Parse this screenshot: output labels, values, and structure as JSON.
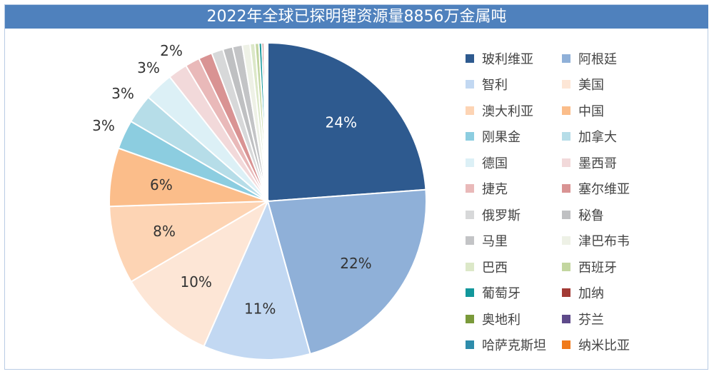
{
  "chart_data": {
    "type": "pie",
    "title": "2022年全球已探明锂资源量8856万金属吨",
    "start": "top",
    "direction": "clockwise",
    "legend_position": "right",
    "title_bar_color": "#4f81bd",
    "slices": [
      {
        "name": "玻利维亚",
        "value": 24,
        "label": "24%",
        "color": "#2e5a8f"
      },
      {
        "name": "阿根廷",
        "value": 22,
        "label": "22%",
        "color": "#8fb0d8"
      },
      {
        "name": "智利",
        "value": 11,
        "label": "11%",
        "color": "#c2d8f2"
      },
      {
        "name": "美国",
        "value": 10,
        "label": "10%",
        "color": "#fde6d6"
      },
      {
        "name": "澳大利亚",
        "value": 8,
        "label": "8%",
        "color": "#fdd4b4"
      },
      {
        "name": "中国",
        "value": 6,
        "label": "6%",
        "color": "#fbbd8a"
      },
      {
        "name": "刚果金",
        "value": 3,
        "label": "3%",
        "color": "#8ccde0"
      },
      {
        "name": "加拿大",
        "value": 3,
        "label": "3%",
        "color": "#b6dde8"
      },
      {
        "name": "德国",
        "value": 3,
        "label": "3%",
        "color": "#dcf0f6"
      },
      {
        "name": "墨西哥",
        "value": 2,
        "label": "2%",
        "color": "#f2d9da"
      },
      {
        "name": "捷克",
        "value": 1.5,
        "color": "#e9b9b9"
      },
      {
        "name": "塞尔维亚",
        "value": 1.4,
        "color": "#d99393"
      },
      {
        "name": "俄罗斯",
        "value": 1.2,
        "color": "#d7d8d9"
      },
      {
        "name": "秘鲁",
        "value": 1.0,
        "color": "#bfc0c2"
      },
      {
        "name": "马里",
        "value": 1.0,
        "color": "#c3c4c6"
      },
      {
        "name": "津巴布韦",
        "value": 0.8,
        "color": "#eef1e6"
      },
      {
        "name": "巴西",
        "value": 0.5,
        "color": "#dce8c8"
      },
      {
        "name": "西班牙",
        "value": 0.4,
        "color": "#c3d6a0"
      },
      {
        "name": "葡萄牙",
        "value": 0.3,
        "color": "#12979b"
      },
      {
        "name": "加纳",
        "value": 0.2,
        "color": "#a23a35"
      },
      {
        "name": "奥地利",
        "value": 0.1,
        "color": "#7a9a3a"
      },
      {
        "name": "芬兰",
        "value": 0.1,
        "color": "#5e4a8a"
      },
      {
        "name": "哈萨克斯坦",
        "value": 0.1,
        "color": "#2e8cab"
      },
      {
        "name": "纳米比亚",
        "value": 0.1,
        "color": "#f07a1a"
      }
    ]
  }
}
